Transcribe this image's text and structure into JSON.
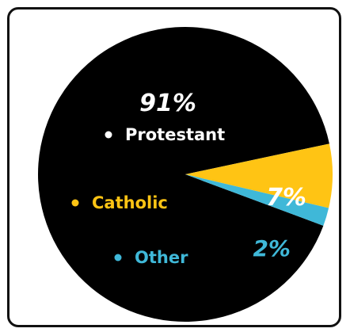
{
  "chart_data": {
    "type": "pie",
    "slices": [
      {
        "label": "Protestant",
        "value": 91,
        "value_label": "91%",
        "color": "#000000",
        "label_color": "#ffffff"
      },
      {
        "label": "Catholic",
        "value": 7,
        "value_label": "7%",
        "color": "#FFC414",
        "label_color": "#FFC414"
      },
      {
        "label": "Other",
        "value": 2,
        "value_label": "2%",
        "color": "#3FB8D8",
        "label_color": "#3FB8D8"
      }
    ],
    "title": "",
    "legend": "inside",
    "colors": {
      "border": "#111111",
      "background": "#ffffff"
    }
  }
}
